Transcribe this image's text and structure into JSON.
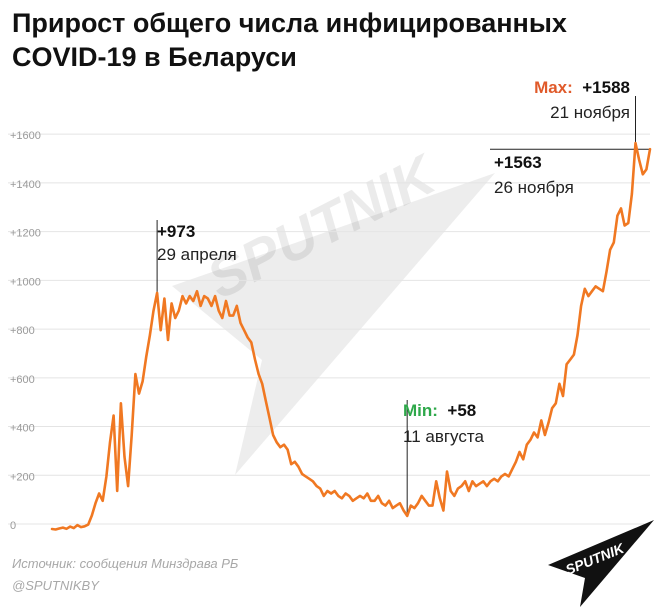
{
  "chart_data": {
    "type": "line",
    "title": "Прирост общего числа инфицированных COVID-19 в Беларуси",
    "ylim": [
      0,
      1650
    ],
    "yticks": [
      "0",
      "+200",
      "+400",
      "+600",
      "+800",
      "+1000",
      "+1200",
      "+1400",
      "+1600"
    ],
    "grid": true,
    "line_color": "#f07822",
    "annotations": {
      "peak1": {
        "value": "+973",
        "date": "29 апреля"
      },
      "min": {
        "label": "Min:",
        "value": "+58",
        "date": "11 августа"
      },
      "max": {
        "label": "Max:",
        "value": "+1588",
        "date": "21 ноября"
      },
      "last": {
        "value": "+1563",
        "date": "26 ноября"
      }
    },
    "series": [
      {
        "values": [
          4,
          2,
          6,
          10,
          5,
          14,
          8,
          20,
          12,
          15,
          22,
          60,
          110,
          150,
          120,
          220,
          360,
          470,
          160,
          520,
          300,
          180,
          390,
          640,
          560,
          610,
          710,
          800,
          900,
          973,
          820,
          950,
          780,
          930,
          870,
          900,
          960,
          930,
          960,
          940,
          980,
          920,
          960,
          950,
          920,
          960,
          900,
          870,
          940,
          880,
          880,
          920,
          850,
          820,
          790,
          770,
          700,
          640,
          600,
          530,
          460,
          390,
          360,
          340,
          350,
          330,
          270,
          280,
          260,
          230,
          220,
          210,
          200,
          180,
          170,
          140,
          160,
          150,
          160,
          140,
          130,
          150,
          140,
          120,
          130,
          140,
          130,
          150,
          120,
          120,
          140,
          110,
          100,
          120,
          90,
          100,
          110,
          80,
          58,
          100,
          90,
          110,
          140,
          120,
          100,
          100,
          200,
          130,
          80,
          240,
          160,
          140,
          170,
          180,
          200,
          160,
          200,
          180,
          190,
          200,
          180,
          200,
          210,
          200,
          220,
          230,
          220,
          250,
          280,
          320,
          290,
          350,
          370,
          400,
          380,
          450,
          390,
          440,
          500,
          520,
          600,
          550,
          680,
          700,
          720,
          800,
          920,
          990,
          960,
          980,
          1000,
          990,
          980,
          1060,
          1150,
          1180,
          1290,
          1320,
          1250,
          1260,
          1380,
          1588,
          1520,
          1460,
          1480,
          1563
        ]
      }
    ]
  },
  "source_text": "Источник: сообщения Минздрава РБ",
  "handle_text": "@SPUTNIKBY",
  "brand": "SPUTNIK",
  "accent_color": "#f07822"
}
